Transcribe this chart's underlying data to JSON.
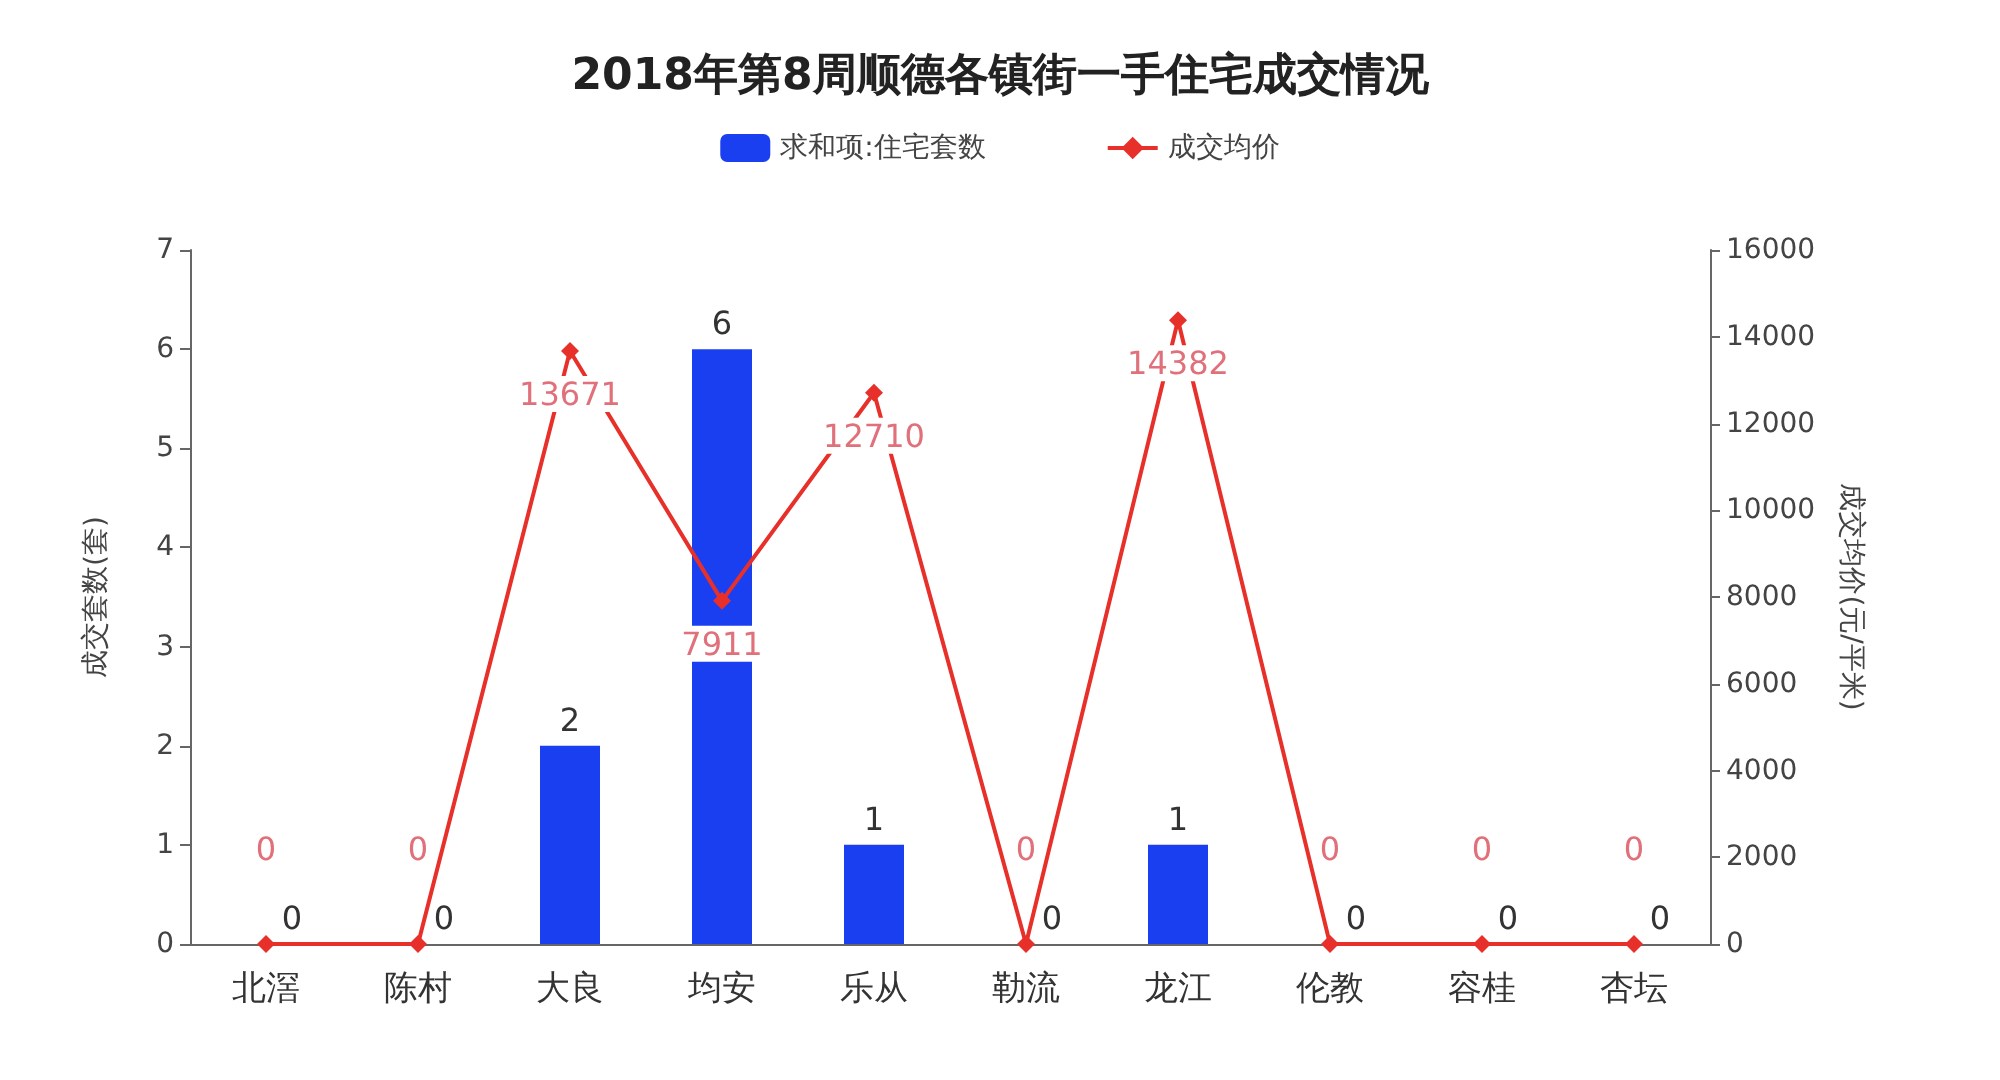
{
  "chart_data": {
    "type": "bar",
    "title": "2018年第8周顺德各镇街一手住宅成交情况",
    "ylabel": "成交套数(套)",
    "y2label": "成交均价(元/平米)",
    "categories": [
      "北滘",
      "陈村",
      "大良",
      "均安",
      "乐从",
      "勒流",
      "龙江",
      "伦教",
      "容桂",
      "杏坛"
    ],
    "series": [
      {
        "name": "求和项:住宅套数",
        "type": "bar",
        "color": "#1a3ff0",
        "values": [
          0,
          0,
          2,
          6,
          1,
          0,
          1,
          0,
          0,
          0
        ]
      },
      {
        "name": "成交均价",
        "type": "line",
        "axis": "y2",
        "color": "#e8302a",
        "values": [
          0,
          0,
          13671,
          7911,
          12710,
          0,
          14382,
          0,
          0,
          0
        ]
      }
    ],
    "ylim": [
      0,
      7
    ],
    "yticks": [
      0,
      1,
      2,
      3,
      4,
      5,
      6,
      7
    ],
    "y2lim": [
      0,
      16000
    ],
    "y2ticks": [
      0,
      2000,
      4000,
      6000,
      8000,
      10000,
      12000,
      14000,
      16000
    ],
    "data_labels": true,
    "grid": false,
    "legend": "top",
    "marker": "diamond",
    "line_style": "solid"
  }
}
